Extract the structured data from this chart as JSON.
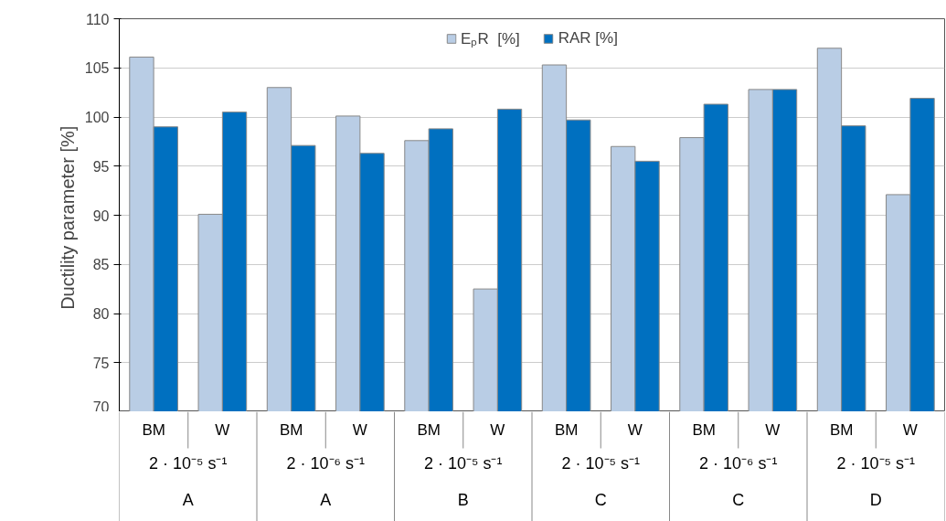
{
  "chart_data": {
    "type": "bar",
    "ylabel": "Ductility parameter  [%]",
    "categories": [
      "BM",
      "W",
      "BM",
      "W",
      "BM",
      "W",
      "BM",
      "W",
      "BM",
      "W",
      "BM",
      "W"
    ],
    "series": [
      {
        "name": "EₚR  [%]",
        "color": "#b9cde5",
        "values": [
          106.1,
          90.1,
          103.0,
          100.1,
          97.6,
          82.5,
          105.3,
          97.0,
          97.9,
          102.8,
          107.0,
          92.1
        ]
      },
      {
        "name": "RAR [%]",
        "color": "#0070c0",
        "values": [
          99.0,
          100.5,
          97.1,
          96.3,
          98.8,
          100.8,
          99.7,
          95.5,
          101.3,
          102.8,
          99.1,
          101.9
        ]
      }
    ],
    "annotations": [
      "2 · 10⁻⁵ s⁻¹",
      "A",
      "2 · 10⁻⁶ s⁻¹",
      "A",
      "2 · 10⁻⁵ s⁻¹",
      "B",
      "2 · 10⁻⁵ s⁻¹",
      "C",
      "2 · 10⁻⁶ s⁻¹",
      "C",
      "2 · 10⁻⁵ s⁻¹",
      "D"
    ],
    "ylim": [
      70,
      110
    ],
    "yticks": [
      70,
      75,
      80,
      85,
      90,
      95,
      100,
      105,
      110
    ],
    "grid": "y",
    "legend": "top"
  }
}
